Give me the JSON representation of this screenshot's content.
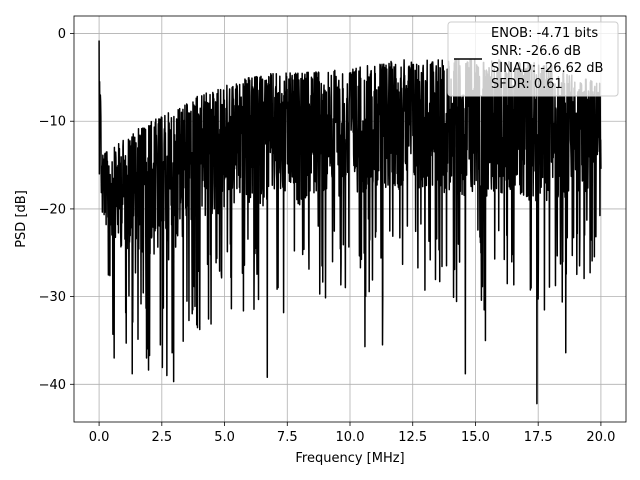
{
  "chart_data": {
    "type": "line",
    "title": "",
    "xlabel": "Frequency [MHz]",
    "ylabel": "PSD [dB]",
    "xlim": [
      -1.0,
      21.0
    ],
    "ylim": [
      -44.3,
      2.0
    ],
    "x_ticks": [
      0.0,
      2.5,
      5.0,
      7.5,
      10.0,
      12.5,
      15.0,
      17.5,
      20.0
    ],
    "x_tick_labels": [
      "0.0",
      "2.5",
      "5.0",
      "7.5",
      "10.0",
      "12.5",
      "15.0",
      "17.5",
      "20.0"
    ],
    "y_ticks": [
      0,
      -10,
      -20,
      -30,
      -40
    ],
    "y_tick_labels": [
      "0",
      "−10",
      "−20",
      "−30",
      "−40"
    ],
    "grid": true,
    "legend_position": "top-right",
    "legend_entries": [
      "ENOB: -4.71 bits",
      "SNR: -26.6 dB",
      "SINAD: -26.62 dB",
      "SFDR: 0.61"
    ],
    "line_color": "#000000",
    "series": [
      {
        "x_range": [
          0.0,
          20.0
        ],
        "envelope_x": [
          0.0,
          0.05,
          0.1,
          0.3,
          0.6,
          1.0,
          1.5,
          2.0,
          2.5,
          3.0,
          3.5,
          4.0,
          5.0,
          6.0,
          7.0,
          8.0,
          10.0,
          12.0,
          14.0,
          16.0,
          18.0,
          19.0,
          20.0
        ],
        "envelope_top": [
          -0.8,
          -5.5,
          -13.0,
          -13.5,
          -13.0,
          -12.0,
          -11.0,
          -10.0,
          -9.5,
          -8.5,
          -8.0,
          -7.0,
          -6.0,
          -5.0,
          -4.5,
          -4.5,
          -4.0,
          -3.0,
          -3.0,
          -3.0,
          -3.5,
          -5.0,
          -5.5
        ],
        "envelope_bottom": [
          -16.0,
          -18.0,
          -29.0,
          -30.0,
          -34.0,
          -35.0,
          -36.0,
          -39.0,
          -39.5,
          -39.8,
          -35.0,
          -34.0,
          -33.0,
          -32.0,
          -32.0,
          -32.0,
          -30.0,
          -30.0,
          -31.0,
          -32.0,
          -32.0,
          -31.0,
          -25.0
        ],
        "notable_dips": [
          [
            0.55,
            -34.3
          ],
          [
            0.6,
            -37.0
          ],
          [
            1.08,
            -35.3
          ],
          [
            1.32,
            -38.8
          ],
          [
            2.7,
            -39.0
          ],
          [
            2.97,
            -39.7
          ],
          [
            6.7,
            -39.2
          ],
          [
            10.6,
            -35.7
          ],
          [
            11.3,
            -35.5
          ],
          [
            14.6,
            -38.8
          ],
          [
            15.4,
            -35.0
          ],
          [
            17.45,
            -42.2
          ],
          [
            18.6,
            -36.4
          ]
        ],
        "num_points": 2000
      }
    ]
  }
}
